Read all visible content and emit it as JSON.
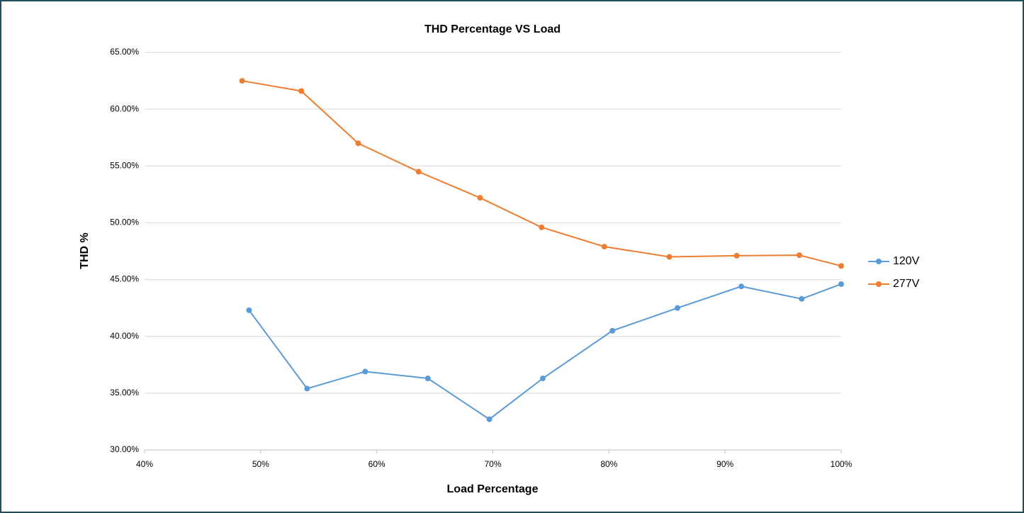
{
  "chart_data": {
    "type": "line",
    "title": "THD Percentage VS Load",
    "xlabel": "Load Percentage",
    "ylabel": "THD %",
    "series": [
      {
        "name": "120V",
        "color": "#5b9bd5",
        "x": [
          49.0,
          54.0,
          59.0,
          64.4,
          69.7,
          74.3,
          80.3,
          85.9,
          91.4,
          96.6,
          100
        ],
        "values": [
          42.3,
          35.4,
          36.9,
          36.3,
          32.7,
          36.3,
          40.5,
          42.5,
          44.4,
          43.3,
          44.6
        ]
      },
      {
        "name": "277V",
        "color": "#ed7d31",
        "x": [
          48.4,
          53.5,
          58.4,
          63.6,
          68.9,
          74.2,
          79.6,
          85.2,
          91.0,
          96.4,
          100
        ],
        "values": [
          62.5,
          61.6,
          57.0,
          54.5,
          52.2,
          49.6,
          47.9,
          47.0,
          47.1,
          47.15,
          46.2
        ]
      }
    ],
    "xlim": [
      40,
      100
    ],
    "xticks": [
      {
        "value": 40,
        "label": "40%"
      },
      {
        "value": 50,
        "label": "50%"
      },
      {
        "value": 60,
        "label": "60%"
      },
      {
        "value": 70,
        "label": "70%"
      },
      {
        "value": 80,
        "label": "80%"
      },
      {
        "value": 90,
        "label": "90%"
      },
      {
        "value": 100,
        "label": "100%"
      }
    ],
    "ylim": [
      30,
      65
    ],
    "yticks": [
      {
        "value": 30,
        "label": "30.00%"
      },
      {
        "value": 35,
        "label": "35.00%"
      },
      {
        "value": 40,
        "label": "40.00%"
      },
      {
        "value": 45,
        "label": "45.00%"
      },
      {
        "value": 50,
        "label": "50.00%"
      },
      {
        "value": 55,
        "label": "55.00%"
      },
      {
        "value": 60,
        "label": "60.00%"
      },
      {
        "value": 65,
        "label": "65.00%"
      }
    ],
    "grid": true,
    "legend": "right"
  }
}
